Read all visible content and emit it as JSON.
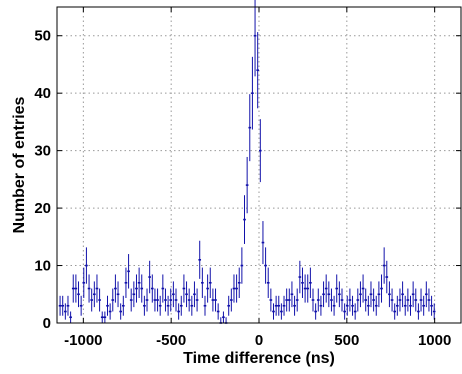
{
  "chart_data": {
    "type": "histogram",
    "xlabel": "Time difference (ns)",
    "ylabel": "Number of entries",
    "xlim": [
      -1150,
      1150
    ],
    "ylim": [
      0,
      55
    ],
    "xticks": [
      -1000,
      -500,
      0,
      500,
      1000
    ],
    "yticks": [
      0,
      10,
      20,
      30,
      40,
      50
    ],
    "xtick_labels": [
      "-1000",
      "-500",
      "0",
      "500",
      "1000"
    ],
    "ytick_labels": [
      "0",
      "10",
      "20",
      "30",
      "40",
      "50"
    ],
    "grid": true,
    "color": "#1111aa",
    "bin_width": 15,
    "bin_start": -1140,
    "values": [
      3,
      3,
      2,
      3,
      1,
      6,
      6,
      5,
      3,
      7,
      10,
      6,
      4,
      5,
      6,
      4,
      1,
      1,
      3,
      2,
      4,
      6,
      5,
      2,
      3,
      7,
      9,
      4,
      5,
      6,
      7,
      6,
      3,
      4,
      8,
      6,
      4,
      4,
      3,
      6,
      4,
      3,
      4,
      5,
      4,
      2,
      3,
      6,
      5,
      4,
      3,
      5,
      4,
      11,
      7,
      3,
      6,
      7,
      4,
      4,
      2,
      0,
      1,
      0,
      3,
      4,
      6,
      6,
      7,
      10,
      18,
      24,
      34,
      40,
      50,
      44,
      30,
      14,
      10,
      7,
      4,
      2,
      3,
      3,
      2,
      3,
      4,
      4,
      5,
      3,
      4,
      8,
      7,
      6,
      6,
      7,
      4,
      2,
      4,
      3,
      5,
      6,
      5,
      4,
      3,
      6,
      5,
      4,
      2,
      3,
      4,
      3,
      2,
      4,
      5,
      6,
      4,
      3,
      5,
      4,
      3,
      5,
      6,
      10,
      8,
      5,
      4,
      2,
      3,
      4,
      5,
      3,
      4,
      3,
      5,
      4,
      2,
      4,
      3,
      5,
      4,
      3,
      2
    ]
  }
}
